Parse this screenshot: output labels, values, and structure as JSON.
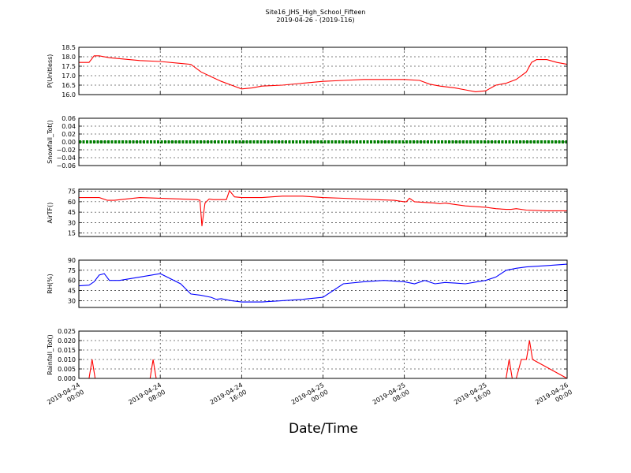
{
  "title_line1": "Site16_JHS_High_School_Fifteen",
  "title_line2": "2019-04-26 - (2019-116)",
  "xlabel": "Date/Time",
  "chart_data": {
    "type": "line",
    "x_range": [
      "2019-04-24 00:00",
      "2019-04-26 00:00"
    ],
    "x_ticks": [
      {
        "line1": "2019-04-24",
        "line2": "00:00",
        "hour": 0
      },
      {
        "line1": "2019-04-24",
        "line2": "08:00",
        "hour": 8
      },
      {
        "line1": "2019-04-24",
        "line2": "16:00",
        "hour": 16
      },
      {
        "line1": "2019-04-25",
        "line2": "00:00",
        "hour": 24
      },
      {
        "line1": "2019-04-25",
        "line2": "08:00",
        "hour": 32
      },
      {
        "line1": "2019-04-25",
        "line2": "16:00",
        "hour": 40
      },
      {
        "line1": "2019-04-26",
        "line2": "00:00",
        "hour": 48
      }
    ],
    "grid": true,
    "panels": [
      {
        "ylabel": "P(Unitless)",
        "color": "#ff0000",
        "ylim": [
          16.0,
          18.5
        ],
        "yticks": [
          "16.0",
          "16.5",
          "17.0",
          "17.5",
          "18.0",
          "18.5"
        ],
        "hours": [
          0,
          1,
          1.5,
          2,
          3,
          4,
          6,
          8,
          10,
          11,
          12,
          13,
          14,
          15,
          16,
          17,
          18,
          20,
          22,
          24,
          26,
          28,
          30,
          32,
          33.5,
          34.5,
          35.5,
          37,
          38,
          39,
          40,
          41,
          42,
          43,
          44,
          44.5,
          45,
          46,
          47,
          48
        ],
        "values": [
          17.7,
          17.7,
          18.05,
          18.05,
          17.95,
          17.9,
          17.8,
          17.75,
          17.65,
          17.6,
          17.2,
          16.95,
          16.7,
          16.5,
          16.3,
          16.35,
          16.45,
          16.5,
          16.6,
          16.7,
          16.75,
          16.8,
          16.8,
          16.8,
          16.75,
          16.55,
          16.45,
          16.35,
          16.25,
          16.15,
          16.2,
          16.5,
          16.6,
          16.8,
          17.2,
          17.7,
          17.85,
          17.85,
          17.7,
          17.6
        ]
      },
      {
        "ylabel": "Snowfall_Tot()",
        "color": "#008000",
        "ylim": [
          -0.06,
          0.06
        ],
        "yticks": [
          "−0.06",
          "−0.04",
          "−0.02",
          "0.00",
          "0.02",
          "0.04",
          "0.06"
        ],
        "hours": [
          0,
          48
        ],
        "values": [
          0,
          0
        ],
        "marker": "dots"
      },
      {
        "ylabel": "AirTF()",
        "color": "#ff0000",
        "ylim": [
          10,
          78
        ],
        "yticks": [
          "15",
          "30",
          "45",
          "60",
          "75"
        ],
        "hours": [
          0,
          2,
          2.8,
          3.5,
          6,
          10,
          11.6,
          11.9,
          12.1,
          12.4,
          12.8,
          13.2,
          14.5,
          14.8,
          15.3,
          16,
          18,
          19,
          20,
          22,
          24,
          26,
          29,
          31,
          32,
          32.2,
          32.5,
          33,
          35,
          35.5,
          36,
          37,
          38,
          40,
          41,
          42,
          42.5,
          43,
          44,
          46,
          48
        ],
        "values": [
          66,
          66,
          62,
          62,
          66,
          64,
          63,
          62,
          25,
          58,
          64,
          63,
          63,
          76,
          67,
          66,
          66,
          67,
          68,
          68,
          66,
          65,
          63,
          62,
          60,
          60,
          65,
          60,
          58,
          57,
          58,
          56,
          54,
          52,
          50,
          49,
          49,
          50,
          48,
          47,
          47
        ]
      },
      {
        "ylabel": "RH(%)",
        "color": "#0000ff",
        "ylim": [
          20,
          90
        ],
        "yticks": [
          "30",
          "45",
          "60",
          "75",
          "90"
        ],
        "hours": [
          0,
          1,
          1.5,
          2,
          2.5,
          3,
          4,
          6,
          8,
          10,
          11,
          12,
          13,
          13.5,
          14,
          15,
          16,
          17,
          18,
          20,
          22,
          24,
          26,
          28,
          30,
          32,
          33,
          34,
          35,
          36,
          37,
          38,
          40,
          41,
          42,
          43,
          44,
          46,
          48
        ],
        "values": [
          52,
          53,
          58,
          68,
          70,
          60,
          60,
          65,
          70,
          55,
          40,
          38,
          35,
          32,
          33,
          30,
          28,
          28,
          28,
          30,
          32,
          35,
          55,
          58,
          60,
          58,
          55,
          60,
          55,
          57,
          56,
          55,
          60,
          65,
          75,
          78,
          80,
          82,
          84
        ]
      },
      {
        "ylabel": "Rainfall_Tot()",
        "color": "#ff0000",
        "ylim": [
          0,
          0.025
        ],
        "yticks": [
          "0.000",
          "0.005",
          "0.010",
          "0.015",
          "0.020",
          "0.025"
        ],
        "hours": [
          0,
          1.0,
          1.3,
          1.6,
          7.0,
          7.3,
          7.6,
          42.0,
          42.3,
          42.6,
          43.0,
          43.5,
          44.0,
          44.3,
          44.6,
          48
        ],
        "values": [
          0,
          0,
          0.01,
          0,
          0,
          0.01,
          0,
          0,
          0.01,
          0,
          0,
          0.01,
          0.01,
          0.02,
          0.01,
          0
        ]
      }
    ]
  }
}
